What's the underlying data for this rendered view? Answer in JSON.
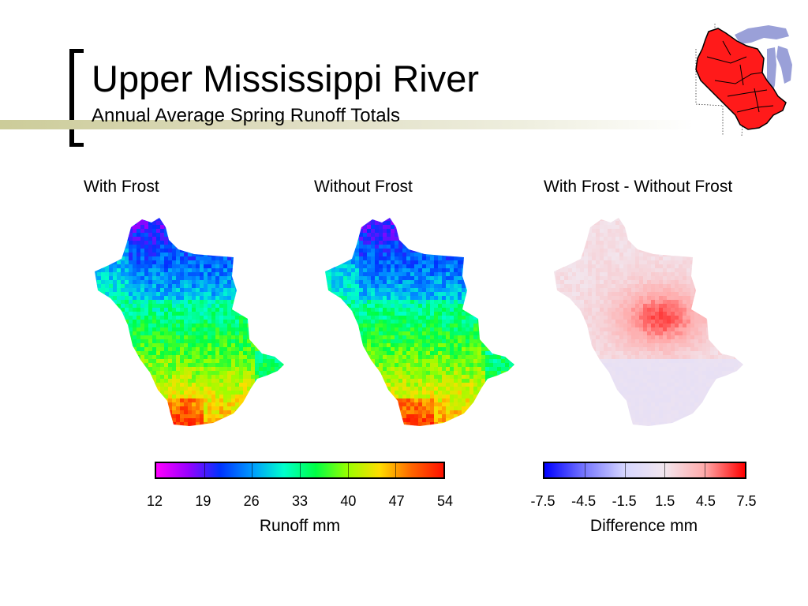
{
  "slide": {
    "title": "Upper Mississippi River",
    "subtitle": "Annual Average Spring Runoff Totals"
  },
  "inset_map": {
    "icon": "great-lakes-region-map",
    "basin_color": "#ff1a1a",
    "lake_color": "#9aa0d8"
  },
  "panels": [
    {
      "title": "With Frost",
      "style": "runoff"
    },
    {
      "title": "Without Frost",
      "style": "runoff"
    },
    {
      "title": "With Frost - Without Frost",
      "style": "difference"
    }
  ],
  "legends": {
    "runoff": {
      "ticks": [
        "12",
        "19",
        "26",
        "33",
        "40",
        "47",
        "54"
      ],
      "label": "Runoff mm",
      "colors": [
        "#ff00ff",
        "#9900ff",
        "#0033ff",
        "#0099ff",
        "#00ffcc",
        "#00ff44",
        "#99ff00",
        "#ffdd00",
        "#ff6600",
        "#ff1100"
      ]
    },
    "difference": {
      "ticks": [
        "-7.5",
        "-4.5",
        "-1.5",
        "1.5",
        "4.5",
        "7.5"
      ],
      "label": "Difference mm",
      "colors": [
        "#0000ff",
        "#7777ff",
        "#d6d6ff",
        "#f2e6ee",
        "#ffaaaa",
        "#ff0000"
      ]
    }
  }
}
